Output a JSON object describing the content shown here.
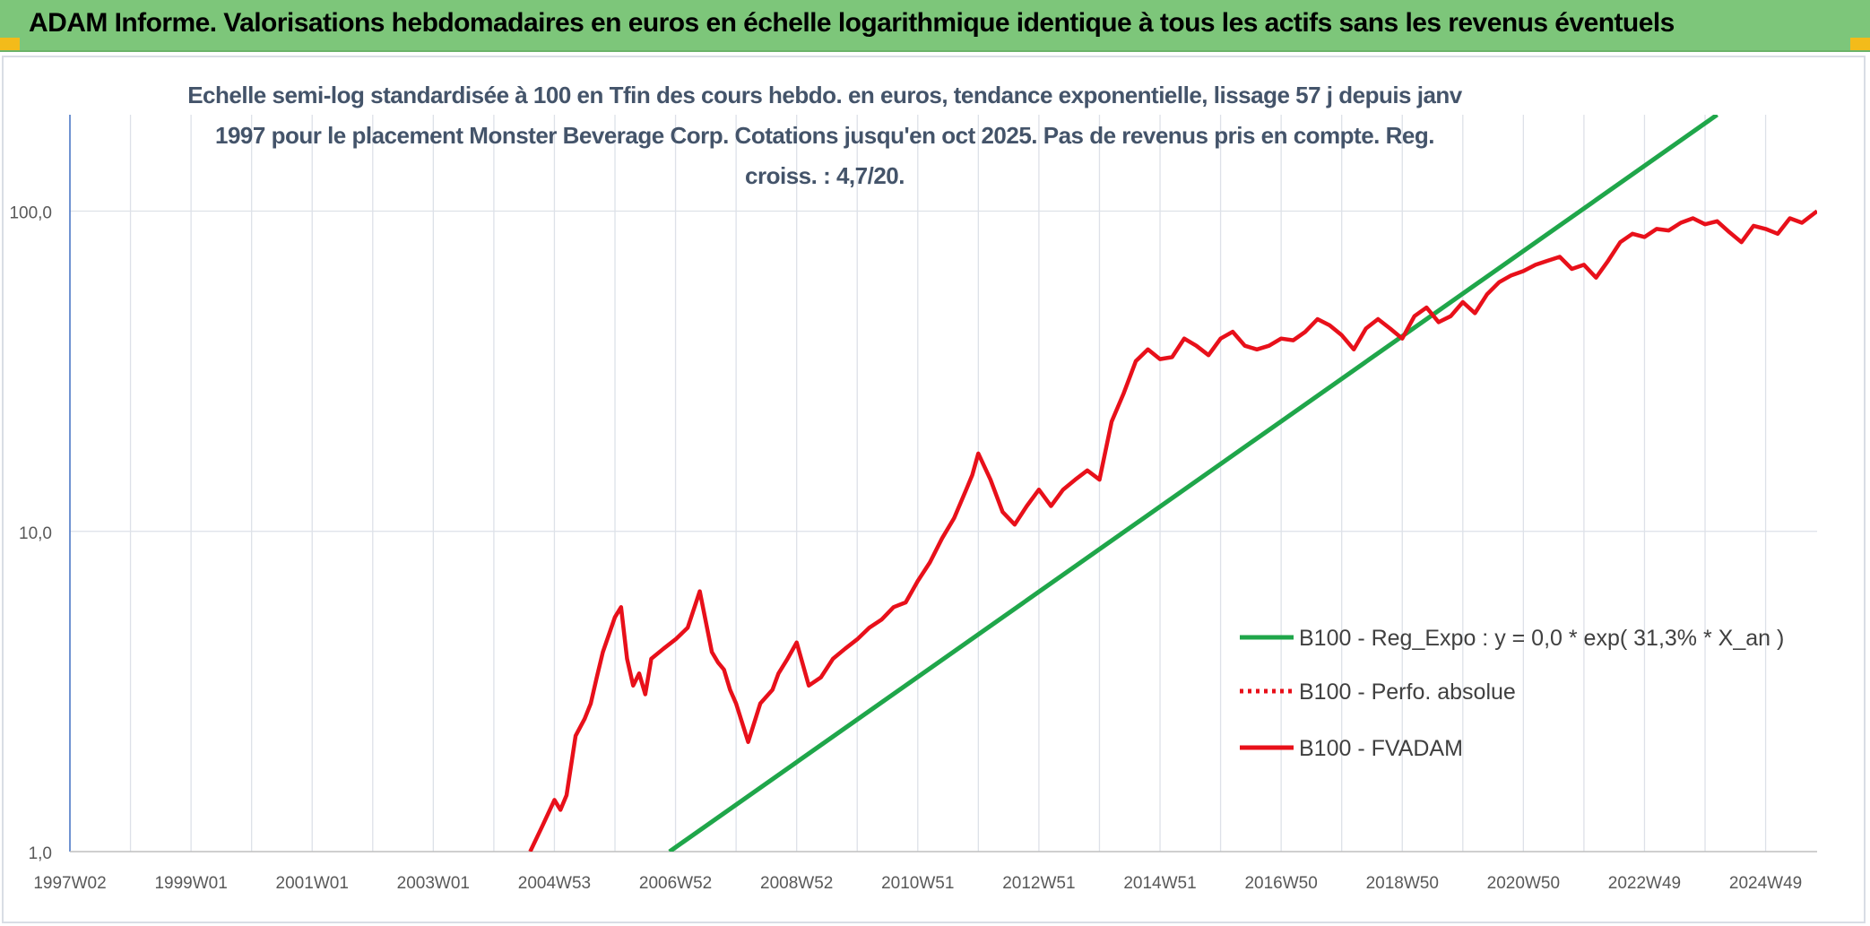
{
  "banner": {
    "title": "ADAM Informe. Valorisations hebdomadaires en euros en échelle logarithmique identique à tous les actifs sans les revenus éventuels",
    "background": "#7dc67a",
    "corner_color": "#f3bb1a"
  },
  "chart_data": {
    "type": "line",
    "title": "Echelle semi-log standardisée à 100 en Tfin des cours hebdo. en euros, tendance exponentielle, lissage 57 j depuis janv 1997 pour le placement Monster Beverage Corp. Cotations jusqu'en oct 2025. Pas de revenus pris en compte. Reg. croiss. : 4,7/20.",
    "y_scale": "log",
    "ylim": [
      1,
      200
    ],
    "y_ticks": [
      1,
      10,
      100
    ],
    "y_tick_labels": [
      "1,0",
      "10,0",
      "100,0"
    ],
    "xlim": [
      1997.0,
      2025.85
    ],
    "x_tick_labels": [
      "1997W02",
      "1999W01",
      "2001W01",
      "2003W01",
      "2004W53",
      "2006W52",
      "2008W52",
      "2010W51",
      "2012W51",
      "2014W51",
      "2016W50",
      "2018W50",
      "2020W50",
      "2022W49",
      "2024W49"
    ],
    "x_tick_values": [
      1997.0,
      1999.0,
      2001.0,
      2003.0,
      2005.0,
      2007.0,
      2009.0,
      2011.0,
      2013.0,
      2015.0,
      2017.0,
      2019.0,
      2021.0,
      2023.0,
      2025.0
    ],
    "x_grid_values": [
      1997.0,
      1998.0,
      1999.0,
      2000.0,
      2001.0,
      2002.0,
      2003.0,
      2004.0,
      2005.0,
      2006.0,
      2007.0,
      2008.0,
      2009.0,
      2010.0,
      2011.0,
      2012.0,
      2013.0,
      2014.0,
      2015.0,
      2016.0,
      2017.0,
      2018.0,
      2019.0,
      2020.0,
      2021.0,
      2022.0,
      2023.0,
      2024.0,
      2025.0
    ],
    "grid": true,
    "legend_position": "center-right",
    "series": [
      {
        "name": "B100 - Reg_Expo : y = 0,0 * exp( 31,3% *  X_an )",
        "color": "#1fa64a",
        "style": "solid",
        "x": [
          2006.9,
          2024.2
        ],
        "y": [
          1.0,
          200.0
        ]
      },
      {
        "name": "B100 - Perfo. absolue",
        "color": "#e8101a",
        "style": "dotted",
        "x": [],
        "y": []
      },
      {
        "name": "B100 - FVADAM",
        "color": "#e8101a",
        "style": "solid",
        "x": [
          2004.6,
          2004.8,
          2005.0,
          2005.1,
          2005.2,
          2005.35,
          2005.5,
          2005.6,
          2005.7,
          2005.8,
          2006.0,
          2006.1,
          2006.2,
          2006.3,
          2006.4,
          2006.5,
          2006.6,
          2006.8,
          2007.0,
          2007.2,
          2007.4,
          2007.6,
          2007.7,
          2007.8,
          2007.9,
          2008.0,
          2008.2,
          2008.4,
          2008.6,
          2008.7,
          2008.85,
          2009.0,
          2009.2,
          2009.4,
          2009.6,
          2009.8,
          2010.0,
          2010.2,
          2010.4,
          2010.6,
          2010.8,
          2011.0,
          2011.2,
          2011.4,
          2011.6,
          2011.8,
          2011.9,
          2012.0,
          2012.2,
          2012.4,
          2012.6,
          2012.8,
          2013.0,
          2013.2,
          2013.4,
          2013.6,
          2013.8,
          2014.0,
          2014.2,
          2014.4,
          2014.6,
          2014.8,
          2015.0,
          2015.2,
          2015.4,
          2015.6,
          2015.8,
          2016.0,
          2016.2,
          2016.4,
          2016.6,
          2016.8,
          2017.0,
          2017.2,
          2017.4,
          2017.6,
          2017.8,
          2018.0,
          2018.2,
          2018.4,
          2018.6,
          2018.8,
          2019.0,
          2019.2,
          2019.4,
          2019.6,
          2019.8,
          2020.0,
          2020.2,
          2020.4,
          2020.6,
          2020.8,
          2021.0,
          2021.2,
          2021.4,
          2021.6,
          2021.8,
          2022.0,
          2022.2,
          2022.4,
          2022.6,
          2022.8,
          2023.0,
          2023.2,
          2023.4,
          2023.6,
          2023.8,
          2024.0,
          2024.2,
          2024.4,
          2024.6,
          2024.8,
          2025.0,
          2025.2,
          2025.4,
          2025.6,
          2025.85
        ],
        "y": [
          1.0,
          1.2,
          1.45,
          1.35,
          1.5,
          2.3,
          2.6,
          2.9,
          3.5,
          4.2,
          5.4,
          5.8,
          4.0,
          3.3,
          3.6,
          3.1,
          4.0,
          4.3,
          4.6,
          5.0,
          6.5,
          4.2,
          3.9,
          3.7,
          3.2,
          2.9,
          2.2,
          2.9,
          3.2,
          3.6,
          4.0,
          4.5,
          3.3,
          3.5,
          4.0,
          4.3,
          4.6,
          5.0,
          5.3,
          5.8,
          6.0,
          7.0,
          8.0,
          9.5,
          11.0,
          13.5,
          15.0,
          17.5,
          14.5,
          11.5,
          10.5,
          12.0,
          13.5,
          12.0,
          13.5,
          14.5,
          15.5,
          14.5,
          22.0,
          27.0,
          34.0,
          37.0,
          34.5,
          35.0,
          40.0,
          38.0,
          35.5,
          40.0,
          42.0,
          38.0,
          37.0,
          38.0,
          40.0,
          39.5,
          42.0,
          46.0,
          44.0,
          41.0,
          37.0,
          43.0,
          46.0,
          43.0,
          40.0,
          47.0,
          50.0,
          45.0,
          47.0,
          52.0,
          48.0,
          55.0,
          60.0,
          63.0,
          65.0,
          68.0,
          70.0,
          72.0,
          66.0,
          68.0,
          62.0,
          70.0,
          80.0,
          85.0,
          83.0,
          88.0,
          87.0,
          92.0,
          95.0,
          91.0,
          93.0,
          86.0,
          80.0,
          90.0,
          88.0,
          85.0,
          95.0,
          92.0,
          100.0
        ]
      }
    ]
  }
}
